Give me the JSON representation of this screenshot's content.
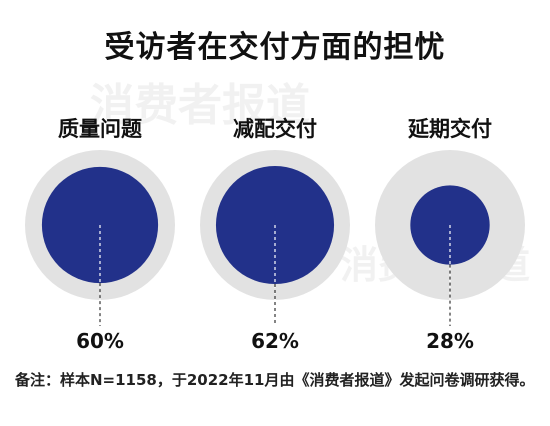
{
  "title": "受访者在交付方面的担忧",
  "chart_data": {
    "type": "bubble",
    "title": "受访者在交付方面的担忧",
    "categories": [
      "质量问题",
      "减配交付",
      "延期交付"
    ],
    "values": [
      60,
      62,
      28
    ],
    "value_labels": [
      "60%",
      "62%",
      "28%"
    ],
    "unit": "%",
    "max": 100
  },
  "colors": {
    "fill": "#22318a",
    "track": "#e2e2e2",
    "line": "#ffffff"
  },
  "note": "备注：样本N=1158，于2022年11月由《消费者报道》发起问卷调研获得。",
  "watermark": "消费者报道"
}
